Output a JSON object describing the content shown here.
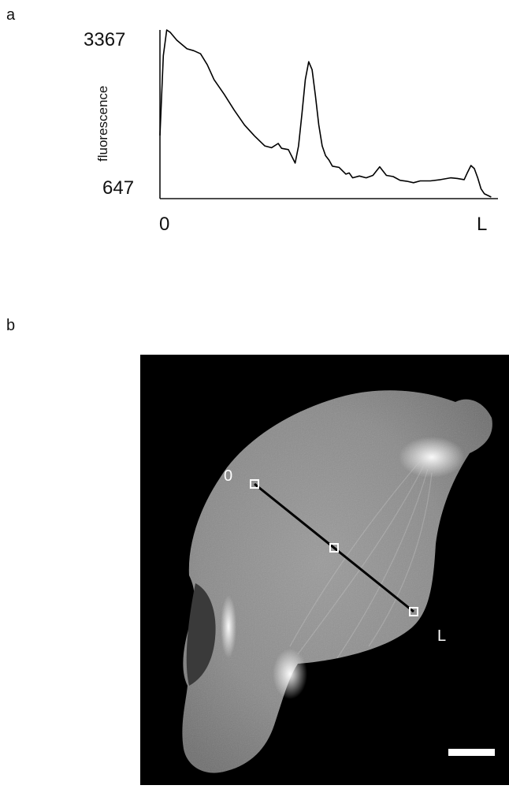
{
  "figure": {
    "panel_a_letter": "a",
    "panel_b_letter": "b",
    "micrograph": {
      "line_start_label": "0",
      "line_end_label": "L",
      "scale_bar": true
    }
  },
  "chart_data": {
    "type": "line",
    "ylabel": "fluorescence",
    "xlabel": "",
    "ylim": [
      647,
      3367
    ],
    "x_tick_labels": [
      "0",
      "L"
    ],
    "y_tick_labels": [
      "647",
      "3367"
    ],
    "series": [
      {
        "color": "#000000",
        "x": [
          0.0,
          0.01,
          0.02,
          0.03,
          0.05,
          0.08,
          0.1,
          0.12,
          0.14,
          0.16,
          0.19,
          0.22,
          0.25,
          0.28,
          0.31,
          0.33,
          0.35,
          0.36,
          0.38,
          0.4,
          0.41,
          0.42,
          0.43,
          0.44,
          0.45,
          0.46,
          0.47,
          0.48,
          0.49,
          0.5,
          0.51,
          0.53,
          0.55,
          0.56,
          0.57,
          0.59,
          0.61,
          0.63,
          0.65,
          0.67,
          0.69,
          0.71,
          0.73,
          0.75,
          0.77,
          0.8,
          0.83,
          0.86,
          0.88,
          0.9,
          0.91,
          0.92,
          0.93,
          0.94,
          0.95,
          0.96,
          0.98
        ],
        "y": [
          1650,
          2950,
          3367,
          3330,
          3200,
          3060,
          3030,
          2980,
          2800,
          2560,
          2320,
          2060,
          1820,
          1640,
          1480,
          1450,
          1520,
          1440,
          1420,
          1200,
          1480,
          2000,
          2560,
          2850,
          2720,
          2300,
          1820,
          1480,
          1320,
          1250,
          1150,
          1130,
          1020,
          1040,
          960,
          990,
          960,
          1000,
          1140,
          1000,
          980,
          920,
          905,
          880,
          910,
          910,
          930,
          960,
          950,
          930,
          1050,
          1160,
          1110,
          960,
          780,
          700,
          647
        ]
      }
    ]
  }
}
